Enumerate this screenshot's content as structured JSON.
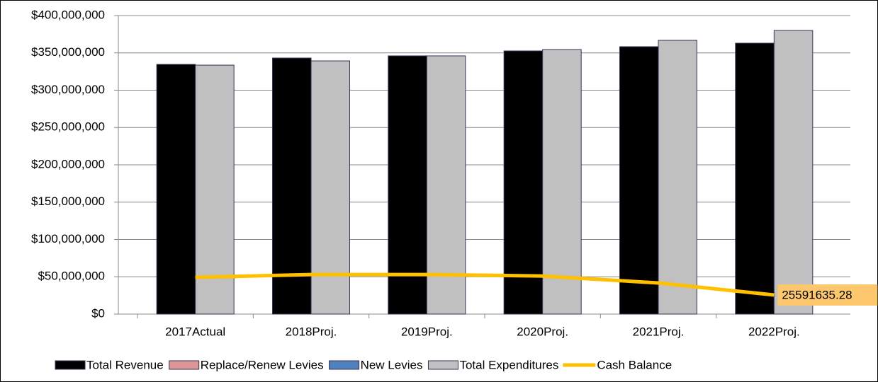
{
  "chart_data": {
    "type": "bar",
    "categories": [
      "2017Actual",
      "2018Proj.",
      "2019Proj.",
      "2020Proj.",
      "2021Proj.",
      "2022Proj."
    ],
    "series": [
      {
        "name": "Total Revenue",
        "color": "#000000",
        "values": [
          334600000,
          343100000,
          346000000,
          352600000,
          358300000,
          363000000
        ]
      },
      {
        "name": "Replace/Renew Levies",
        "color": "#d99694",
        "values": [
          null,
          null,
          null,
          null,
          null,
          null
        ]
      },
      {
        "name": "New Levies",
        "color": "#4f81bd",
        "values": [
          null,
          null,
          null,
          null,
          null,
          null
        ]
      },
      {
        "name": "Total Expenditures",
        "color": "#c0c0c0",
        "values": [
          333600000,
          339300000,
          346000000,
          354500000,
          366800000,
          380000000
        ]
      },
      {
        "name": "Cash Balance",
        "type": "line",
        "color": "#ffc000",
        "values": [
          49300000,
          53000000,
          53000000,
          51000000,
          41700000,
          25591635.28
        ],
        "value_labels": [
          null,
          null,
          null,
          null,
          null,
          "25591635.28"
        ]
      }
    ],
    "ylim": [
      0,
      400000000
    ],
    "yticks": [
      {
        "value": 0,
        "label": "$0"
      },
      {
        "value": 50000000,
        "label": "$50,000,000"
      },
      {
        "value": 100000000,
        "label": "$100,000,000"
      },
      {
        "value": 150000000,
        "label": "$150,000,000"
      },
      {
        "value": 200000000,
        "label": "$200,000,000"
      },
      {
        "value": 250000000,
        "label": "$250,000,000"
      },
      {
        "value": 300000000,
        "label": "$300,000,000"
      },
      {
        "value": 350000000,
        "label": "$350,000,000"
      },
      {
        "value": 400000000,
        "label": "$400,000,000"
      }
    ],
    "grid": true,
    "legend": "bottom"
  }
}
